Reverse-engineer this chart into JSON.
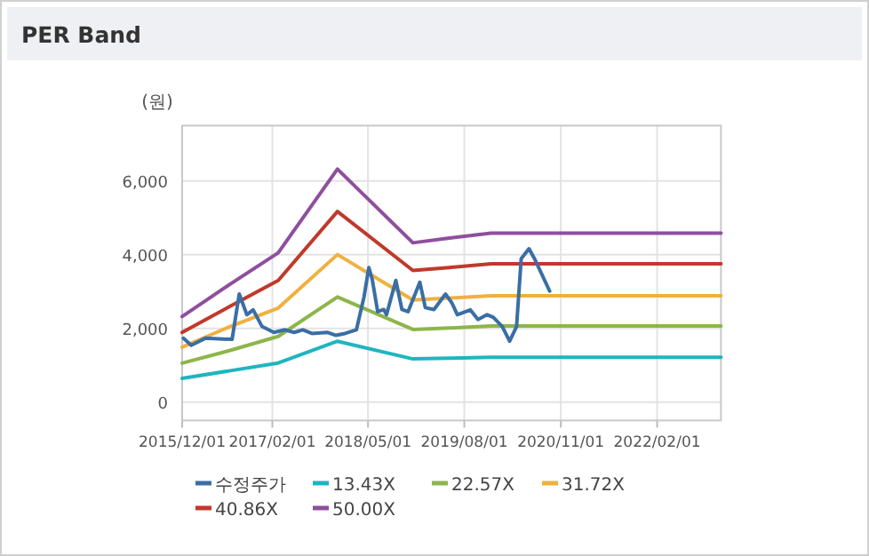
{
  "chart_data": {
    "type": "line",
    "title": "PER Band",
    "ylabel": "(원)",
    "xlim": [
      "2015-12-01",
      "2022-12-01"
    ],
    "ylim": [
      -500,
      7500
    ],
    "xticks": [
      {
        "value": "2015-12-01",
        "label": "2015/12/01"
      },
      {
        "value": "2017-02-01",
        "label": "2017/02/01"
      },
      {
        "value": "2018-05-01",
        "label": "2018/05/01"
      },
      {
        "value": "2019-08-01",
        "label": "2019/08/01"
      },
      {
        "value": "2020-11-01",
        "label": "2020/11/01"
      },
      {
        "value": "2022-02-01",
        "label": "2022/02/01"
      }
    ],
    "yticks": [
      0,
      {
        "value": 2000,
        "label": "2,000"
      },
      {
        "value": 4000,
        "label": "4,000"
      },
      {
        "value": 6000,
        "label": "6,000"
      }
    ],
    "grid": true,
    "legend": "bottom",
    "marker": "none",
    "line_style": "solid",
    "series": [
      {
        "name": "수정주가",
        "color": "#3a6ea5",
        "x": [
          "2015-12-07",
          "2016-01-13",
          "2016-03-20",
          "2016-07-25",
          "2016-08-28",
          "2016-10-03",
          "2016-11-02",
          "2016-12-14",
          "2017-02-08",
          "2017-04-03",
          "2017-05-15",
          "2017-06-26",
          "2017-08-08",
          "2017-10-19",
          "2017-11-30",
          "2018-01-12",
          "2018-03-07",
          "2018-04-12",
          "2018-05-05",
          "2018-05-21",
          "2018-06-16",
          "2018-07-15",
          "2018-07-28",
          "2018-09-10",
          "2018-10-09",
          "2018-11-07",
          "2019-01-02",
          "2019-01-28",
          "2019-03-10",
          "2019-05-04",
          "2019-06-03",
          "2019-06-29",
          "2019-08-30",
          "2019-10-05",
          "2019-11-17",
          "2019-12-16",
          "2020-01-28",
          "2020-03-03",
          "2020-04-05",
          "2020-04-27",
          "2020-06-03",
          "2020-06-29",
          "2020-09-09"
        ],
        "values": [
          1730,
          1540,
          1730,
          1700,
          2930,
          2370,
          2500,
          2050,
          1890,
          1960,
          1890,
          1960,
          1860,
          1890,
          1810,
          1860,
          1960,
          2850,
          3650,
          3330,
          2450,
          2510,
          2370,
          3300,
          2510,
          2450,
          3250,
          2560,
          2510,
          2930,
          2690,
          2370,
          2500,
          2240,
          2370,
          2300,
          2050,
          1650,
          2050,
          3890,
          4160,
          3890,
          3010
        ]
      },
      {
        "name": "13.43X",
        "color": "#1fb5c0",
        "x": [
          "2015-12-01",
          "2016-07-16",
          "2017-03-01",
          "2017-12-07",
          "2018-11-30",
          "2019-05-23",
          "2019-12-06",
          "2022-12-01"
        ],
        "values": [
          640,
          850,
          1060,
          1650,
          1170,
          1190,
          1215,
          1215
        ]
      },
      {
        "name": "22.57X",
        "color": "#8db54a",
        "x": [
          "2015-12-01",
          "2016-07-16",
          "2017-03-01",
          "2017-12-07",
          "2018-11-30",
          "2019-05-23",
          "2019-12-06",
          "2022-12-01"
        ],
        "values": [
          1055,
          1400,
          1780,
          2850,
          1970,
          2010,
          2065,
          2065
        ]
      },
      {
        "name": "31.72X",
        "color": "#f0b040",
        "x": [
          "2015-12-01",
          "2016-07-16",
          "2017-03-01",
          "2017-12-07",
          "2018-11-30",
          "2019-05-23",
          "2019-12-06",
          "2022-12-01"
        ],
        "values": [
          1490,
          2050,
          2550,
          4000,
          2770,
          2820,
          2880,
          2880
        ]
      },
      {
        "name": "40.86X",
        "color": "#c0392b",
        "x": [
          "2015-12-01",
          "2016-07-16",
          "2017-03-01",
          "2017-12-07",
          "2018-11-30",
          "2019-05-23",
          "2019-12-06",
          "2022-12-01"
        ],
        "values": [
          1890,
          2600,
          3300,
          5170,
          3570,
          3650,
          3750,
          3750
        ]
      },
      {
        "name": "50.00X",
        "color": "#8e4f9e",
        "x": [
          "2015-12-01",
          "2016-07-16",
          "2017-03-01",
          "2017-12-07",
          "2018-11-30",
          "2019-05-23",
          "2019-12-06",
          "2022-12-01"
        ],
        "values": [
          2320,
          3200,
          4050,
          6320,
          4320,
          4450,
          4580,
          4580
        ]
      }
    ]
  }
}
